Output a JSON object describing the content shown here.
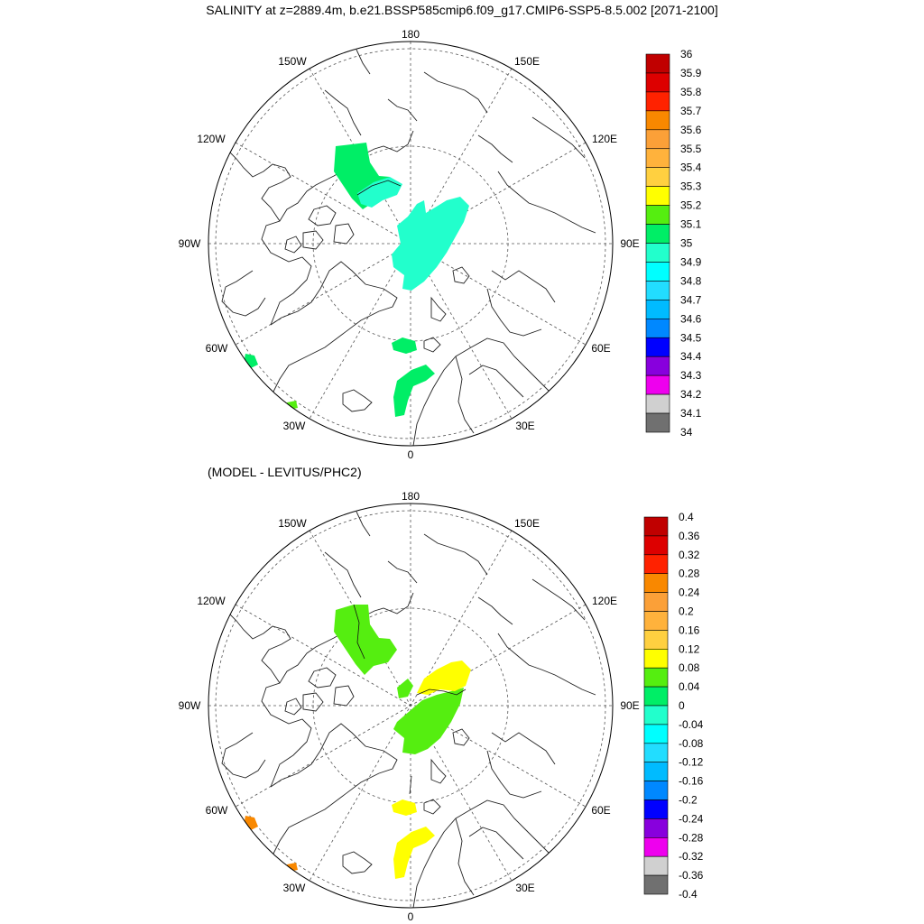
{
  "title": "SALINITY at z=2889.4m, b.e21.BSSP585cmip6.f09_g17.CMIP6-SSP5-8.5.002 [2071-2100]",
  "subtitle": "(MODEL - LEVITUS/PHC2)",
  "longitude_labels": {
    "top": "180",
    "bottom": "0",
    "upper_left": "150W",
    "upper_right": "150E",
    "left_upper": "120W",
    "right_upper": "120E",
    "left": "90W",
    "right": "90E",
    "left_lower": "60W",
    "right_lower": "60E",
    "lower_left": "30W",
    "lower_right": "30E"
  },
  "panels": [
    {
      "name": "salinity",
      "colorbar": {
        "levels": [
          "36",
          "35.9",
          "35.8",
          "35.7",
          "35.6",
          "35.5",
          "35.4",
          "35.3",
          "35.2",
          "35.1",
          "35",
          "34.9",
          "34.8",
          "34.7",
          "34.6",
          "34.5",
          "34.4",
          "34.3",
          "34.2",
          "34.1",
          "34"
        ],
        "colors": [
          "#c00000",
          "#dd0000",
          "#ff2200",
          "#f98800",
          "#fba038",
          "#ffb23c",
          "#ffd040",
          "#ffff00",
          "#55ee10",
          "#00ee66",
          "#22ffcc",
          "#00ffff",
          "#22ddff",
          "#00bbff",
          "#0088ff",
          "#0000ff",
          "#8800dd",
          "#ee00ee",
          "#d0d0d0",
          "#707070"
        ]
      },
      "regions": [
        {
          "name": "canada-basin-patch",
          "color": "#00ee66"
        },
        {
          "name": "chukchi-patch",
          "color": "#22ffcc"
        },
        {
          "name": "eurasian-basin-patch",
          "color": "#22ffcc"
        },
        {
          "name": "fram-strait-patch",
          "color": "#00ee66"
        },
        {
          "name": "greenland-sea-patch",
          "color": "#00ee66"
        },
        {
          "name": "labrador-patch",
          "color": "#00ee66"
        },
        {
          "name": "atlantic-patch",
          "color": "#55ee10"
        }
      ]
    },
    {
      "name": "difference",
      "colorbar": {
        "levels": [
          "0.4",
          "0.36",
          "0.32",
          "0.28",
          "0.24",
          "0.2",
          "0.16",
          "0.12",
          "0.08",
          "0.04",
          "0",
          "-0.04",
          "-0.08",
          "-0.12",
          "-0.16",
          "-0.2",
          "-0.24",
          "-0.28",
          "-0.32",
          "-0.36",
          "-0.4"
        ],
        "colors": [
          "#c00000",
          "#dd0000",
          "#ff2200",
          "#f98800",
          "#fba038",
          "#ffb23c",
          "#ffd040",
          "#ffff00",
          "#55ee10",
          "#00ee66",
          "#22ffcc",
          "#00ffff",
          "#22ddff",
          "#00bbff",
          "#0088ff",
          "#0000ff",
          "#8800dd",
          "#ee00ee",
          "#d0d0d0",
          "#707070"
        ]
      },
      "regions": [
        {
          "name": "canada-basin-patch",
          "color": "#55ee10"
        },
        {
          "name": "eurasian-basin-patch",
          "color": "#55ee10"
        },
        {
          "name": "eurasian-basin-upper-patch",
          "color": "#ffff00"
        },
        {
          "name": "fram-strait-patch",
          "color": "#ffff00"
        },
        {
          "name": "greenland-sea-patch",
          "color": "#ffff00"
        },
        {
          "name": "labrador-patch",
          "color": "#f98800"
        },
        {
          "name": "atlantic-patch",
          "color": "#f98800"
        }
      ]
    }
  ]
}
